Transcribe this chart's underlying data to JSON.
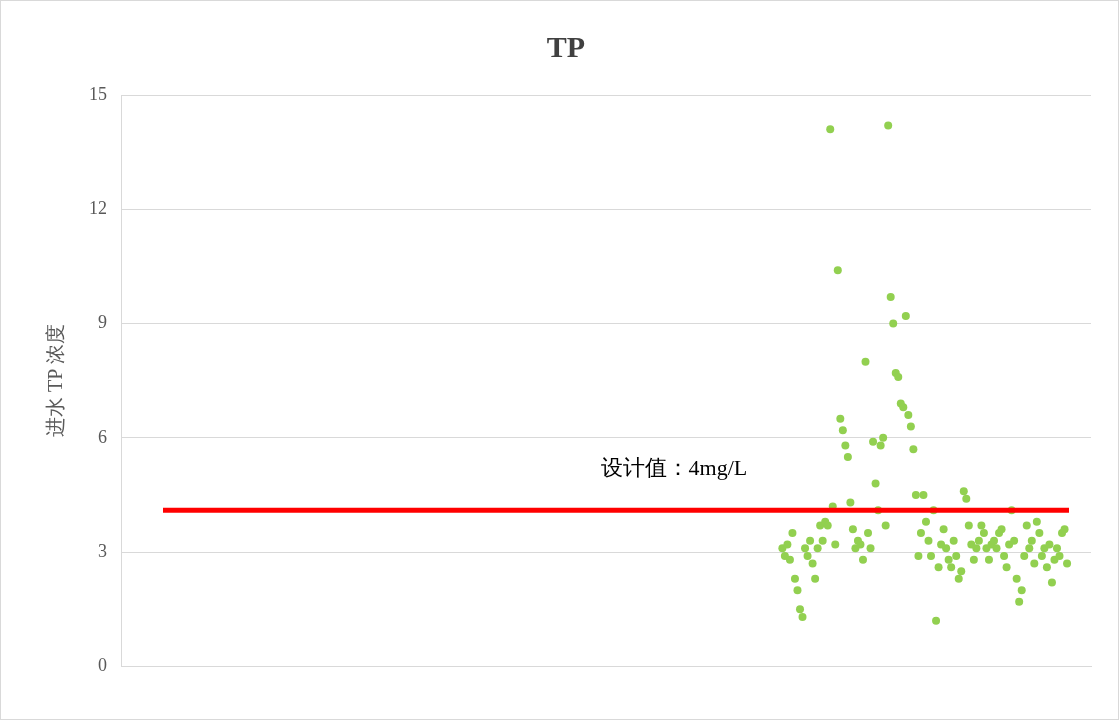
{
  "chart_data": {
    "type": "scatter",
    "title": "TP",
    "ylabel": "进水 TP 浓度",
    "categories": [
      null,
      null,
      null,
      null,
      null,
      null,
      null,
      null,
      null,
      null,
      null,
      null,
      null,
      null,
      null,
      null,
      null,
      null,
      null,
      null,
      null,
      null,
      null,
      null,
      null,
      null,
      null,
      null,
      null,
      null,
      null,
      null,
      null,
      null,
      null,
      null,
      null,
      null,
      null,
      null,
      null,
      null,
      null,
      null,
      null,
      null,
      null,
      null,
      null,
      null,
      null,
      null,
      null,
      null,
      null,
      null,
      null,
      null,
      null,
      null,
      null,
      null,
      null,
      null,
      null,
      null,
      null,
      null,
      null,
      null,
      null,
      null,
      null,
      null,
      null,
      null,
      null,
      null,
      null,
      null,
      null,
      null,
      null,
      null,
      null,
      null,
      null,
      null,
      null,
      null,
      null,
      null,
      null,
      null,
      null,
      null,
      null,
      null,
      null,
      null,
      null,
      null,
      null,
      null,
      null,
      null,
      null,
      null,
      null,
      null,
      null,
      null,
      null,
      null,
      null,
      null,
      null,
      null,
      null,
      null,
      null,
      null,
      null,
      null,
      null,
      null,
      null,
      null,
      null,
      null,
      null,
      null,
      null,
      null,
      null,
      null,
      null,
      null,
      null,
      null,
      null,
      null,
      null,
      null,
      null,
      null,
      null,
      null,
      null,
      null,
      null,
      null,
      null,
      null,
      null,
      null,
      null,
      null,
      null,
      null,
      null,
      null,
      null,
      null,
      null,
      null,
      null,
      null,
      null,
      null,
      null,
      null,
      null,
      null,
      null,
      null,
      null,
      null,
      null,
      null,
      null,
      null,
      null,
      null,
      null,
      null,
      null,
      null,
      null,
      null,
      null,
      null,
      null,
      null,
      null,
      null,
      null,
      null,
      null,
      null,
      null,
      null,
      null,
      null,
      null,
      null,
      null,
      null,
      null,
      null,
      null,
      null,
      null,
      null,
      null,
      null,
      null,
      null,
      null,
      null,
      null,
      null,
      null,
      null,
      null,
      null,
      null,
      null,
      null,
      null,
      null,
      null,
      null,
      null,
      null,
      null,
      null,
      null,
      null,
      null,
      null,
      null,
      null,
      null,
      null,
      null,
      null,
      null,
      null,
      null,
      null,
      null,
      null,
      null,
      null,
      null,
      null,
      null,
      null,
      null,
      null,
      null,
      null,
      null,
      null,
      null,
      null,
      null,
      null,
      null,
      null,
      null,
      null,
      null,
      null,
      null,
      null,
      null,
      null,
      null,
      null,
      null,
      null,
      null,
      null,
      null,
      null,
      null,
      null,
      null,
      null,
      null,
      null,
      null,
      null,
      null,
      null,
      null,
      null,
      null,
      null,
      null,
      null,
      null,
      null,
      null,
      null,
      null,
      null,
      null,
      null,
      null,
      null,
      null,
      null,
      null,
      null,
      null,
      null,
      null,
      null,
      null,
      null,
      null,
      null,
      null,
      null,
      null,
      null,
      null,
      null,
      null,
      null,
      null,
      null,
      null,
      null,
      null,
      null,
      null,
      null,
      null,
      null,
      null,
      null,
      null,
      null,
      null,
      null,
      null,
      null,
      null,
      null,
      null,
      null,
      null,
      null,
      null,
      null,
      null,
      null,
      null,
      null,
      null,
      null,
      null,
      null,
      null,
      null,
      null,
      null,
      null,
      null,
      null,
      null,
      null,
      null,
      null,
      null,
      null,
      null,
      null,
      null,
      null,
      null
    ],
    "ylim": [
      0,
      15
    ],
    "yticks": [
      0,
      3,
      6,
      9,
      12,
      15
    ],
    "grid": "y",
    "marker": "circle",
    "ref_lines": [
      {
        "axis": "y",
        "value": 4.1,
        "label": "设计值：4mg/L",
        "color": "#ff0000"
      }
    ],
    "series": [
      {
        "color": "#92d050",
        "values": [
          null,
          null,
          null,
          null,
          null,
          null,
          null,
          null,
          null,
          null,
          null,
          null,
          null,
          null,
          null,
          null,
          null,
          null,
          null,
          null,
          null,
          null,
          null,
          null,
          null,
          null,
          null,
          null,
          null,
          null,
          null,
          null,
          null,
          null,
          null,
          null,
          null,
          null,
          null,
          null,
          null,
          null,
          null,
          null,
          null,
          null,
          null,
          null,
          null,
          null,
          null,
          null,
          null,
          null,
          null,
          null,
          null,
          null,
          null,
          null,
          null,
          null,
          null,
          null,
          null,
          null,
          null,
          null,
          null,
          null,
          null,
          null,
          null,
          null,
          null,
          null,
          null,
          null,
          null,
          null,
          null,
          null,
          null,
          null,
          null,
          null,
          null,
          null,
          null,
          null,
          null,
          null,
          null,
          null,
          null,
          null,
          null,
          null,
          null,
          null,
          null,
          null,
          null,
          null,
          null,
          null,
          null,
          null,
          null,
          null,
          null,
          null,
          null,
          null,
          null,
          null,
          null,
          null,
          null,
          null,
          null,
          null,
          null,
          null,
          null,
          null,
          null,
          null,
          null,
          null,
          null,
          null,
          null,
          null,
          null,
          null,
          null,
          null,
          null,
          null,
          null,
          null,
          null,
          null,
          null,
          null,
          null,
          null,
          null,
          null,
          null,
          null,
          null,
          null,
          null,
          null,
          null,
          null,
          null,
          null,
          null,
          null,
          null,
          null,
          null,
          null,
          null,
          null,
          null,
          null,
          null,
          null,
          null,
          null,
          null,
          null,
          null,
          null,
          null,
          null,
          null,
          null,
          null,
          null,
          null,
          null,
          null,
          null,
          null,
          null,
          null,
          null,
          null,
          null,
          null,
          null,
          null,
          null,
          null,
          null,
          null,
          null,
          null,
          null,
          null,
          null,
          null,
          null,
          null,
          null,
          null,
          null,
          null,
          null,
          null,
          null,
          null,
          null,
          null,
          null,
          null,
          null,
          null,
          null,
          null,
          null,
          null,
          null,
          null,
          null,
          null,
          null,
          null,
          null,
          null,
          null,
          null,
          null,
          null,
          null,
          null,
          null,
          null,
          null,
          null,
          null,
          null,
          null,
          null,
          null,
          null,
          null,
          null,
          null,
          null,
          null,
          null,
          null,
          null,
          null,
          null,
          null,
          3.1,
          2.9,
          3.2,
          2.8,
          3.5,
          2.3,
          2.0,
          1.5,
          1.3,
          3.1,
          2.9,
          3.3,
          2.7,
          2.3,
          3.1,
          3.7,
          3.3,
          3.8,
          3.7,
          14.1,
          4.2,
          3.2,
          10.4,
          6.5,
          6.2,
          5.8,
          5.5,
          4.3,
          3.6,
          3.1,
          3.3,
          3.2,
          2.8,
          8.0,
          3.5,
          3.1,
          5.9,
          4.8,
          4.1,
          5.8,
          6.0,
          3.7,
          14.2,
          9.7,
          9.0,
          7.7,
          7.6,
          6.9,
          6.8,
          9.2,
          6.6,
          6.3,
          5.7,
          4.5,
          2.9,
          3.5,
          4.5,
          3.8,
          3.3,
          2.9,
          4.1,
          1.2,
          2.6,
          3.2,
          3.6,
          3.1,
          2.8,
          2.6,
          3.3,
          2.9,
          2.3,
          2.5,
          4.6,
          4.4,
          3.7,
          3.2,
          2.8,
          3.1,
          3.3,
          3.7,
          3.5,
          3.1,
          2.8,
          3.2,
          3.3,
          3.1,
          3.5,
          3.6,
          2.9,
          2.6,
          3.2,
          4.1,
          3.3,
          2.3,
          1.7,
          2.0,
          2.9,
          3.7,
          3.1,
          3.3,
          2.7,
          3.8,
          3.5,
          2.9,
          3.1,
          2.6,
          3.2,
          2.2,
          2.8,
          3.1,
          2.9,
          3.5,
          3.6,
          2.7,
          null,
          null,
          null,
          null,
          null,
          null,
          null,
          null,
          null
        ]
      }
    ]
  }
}
